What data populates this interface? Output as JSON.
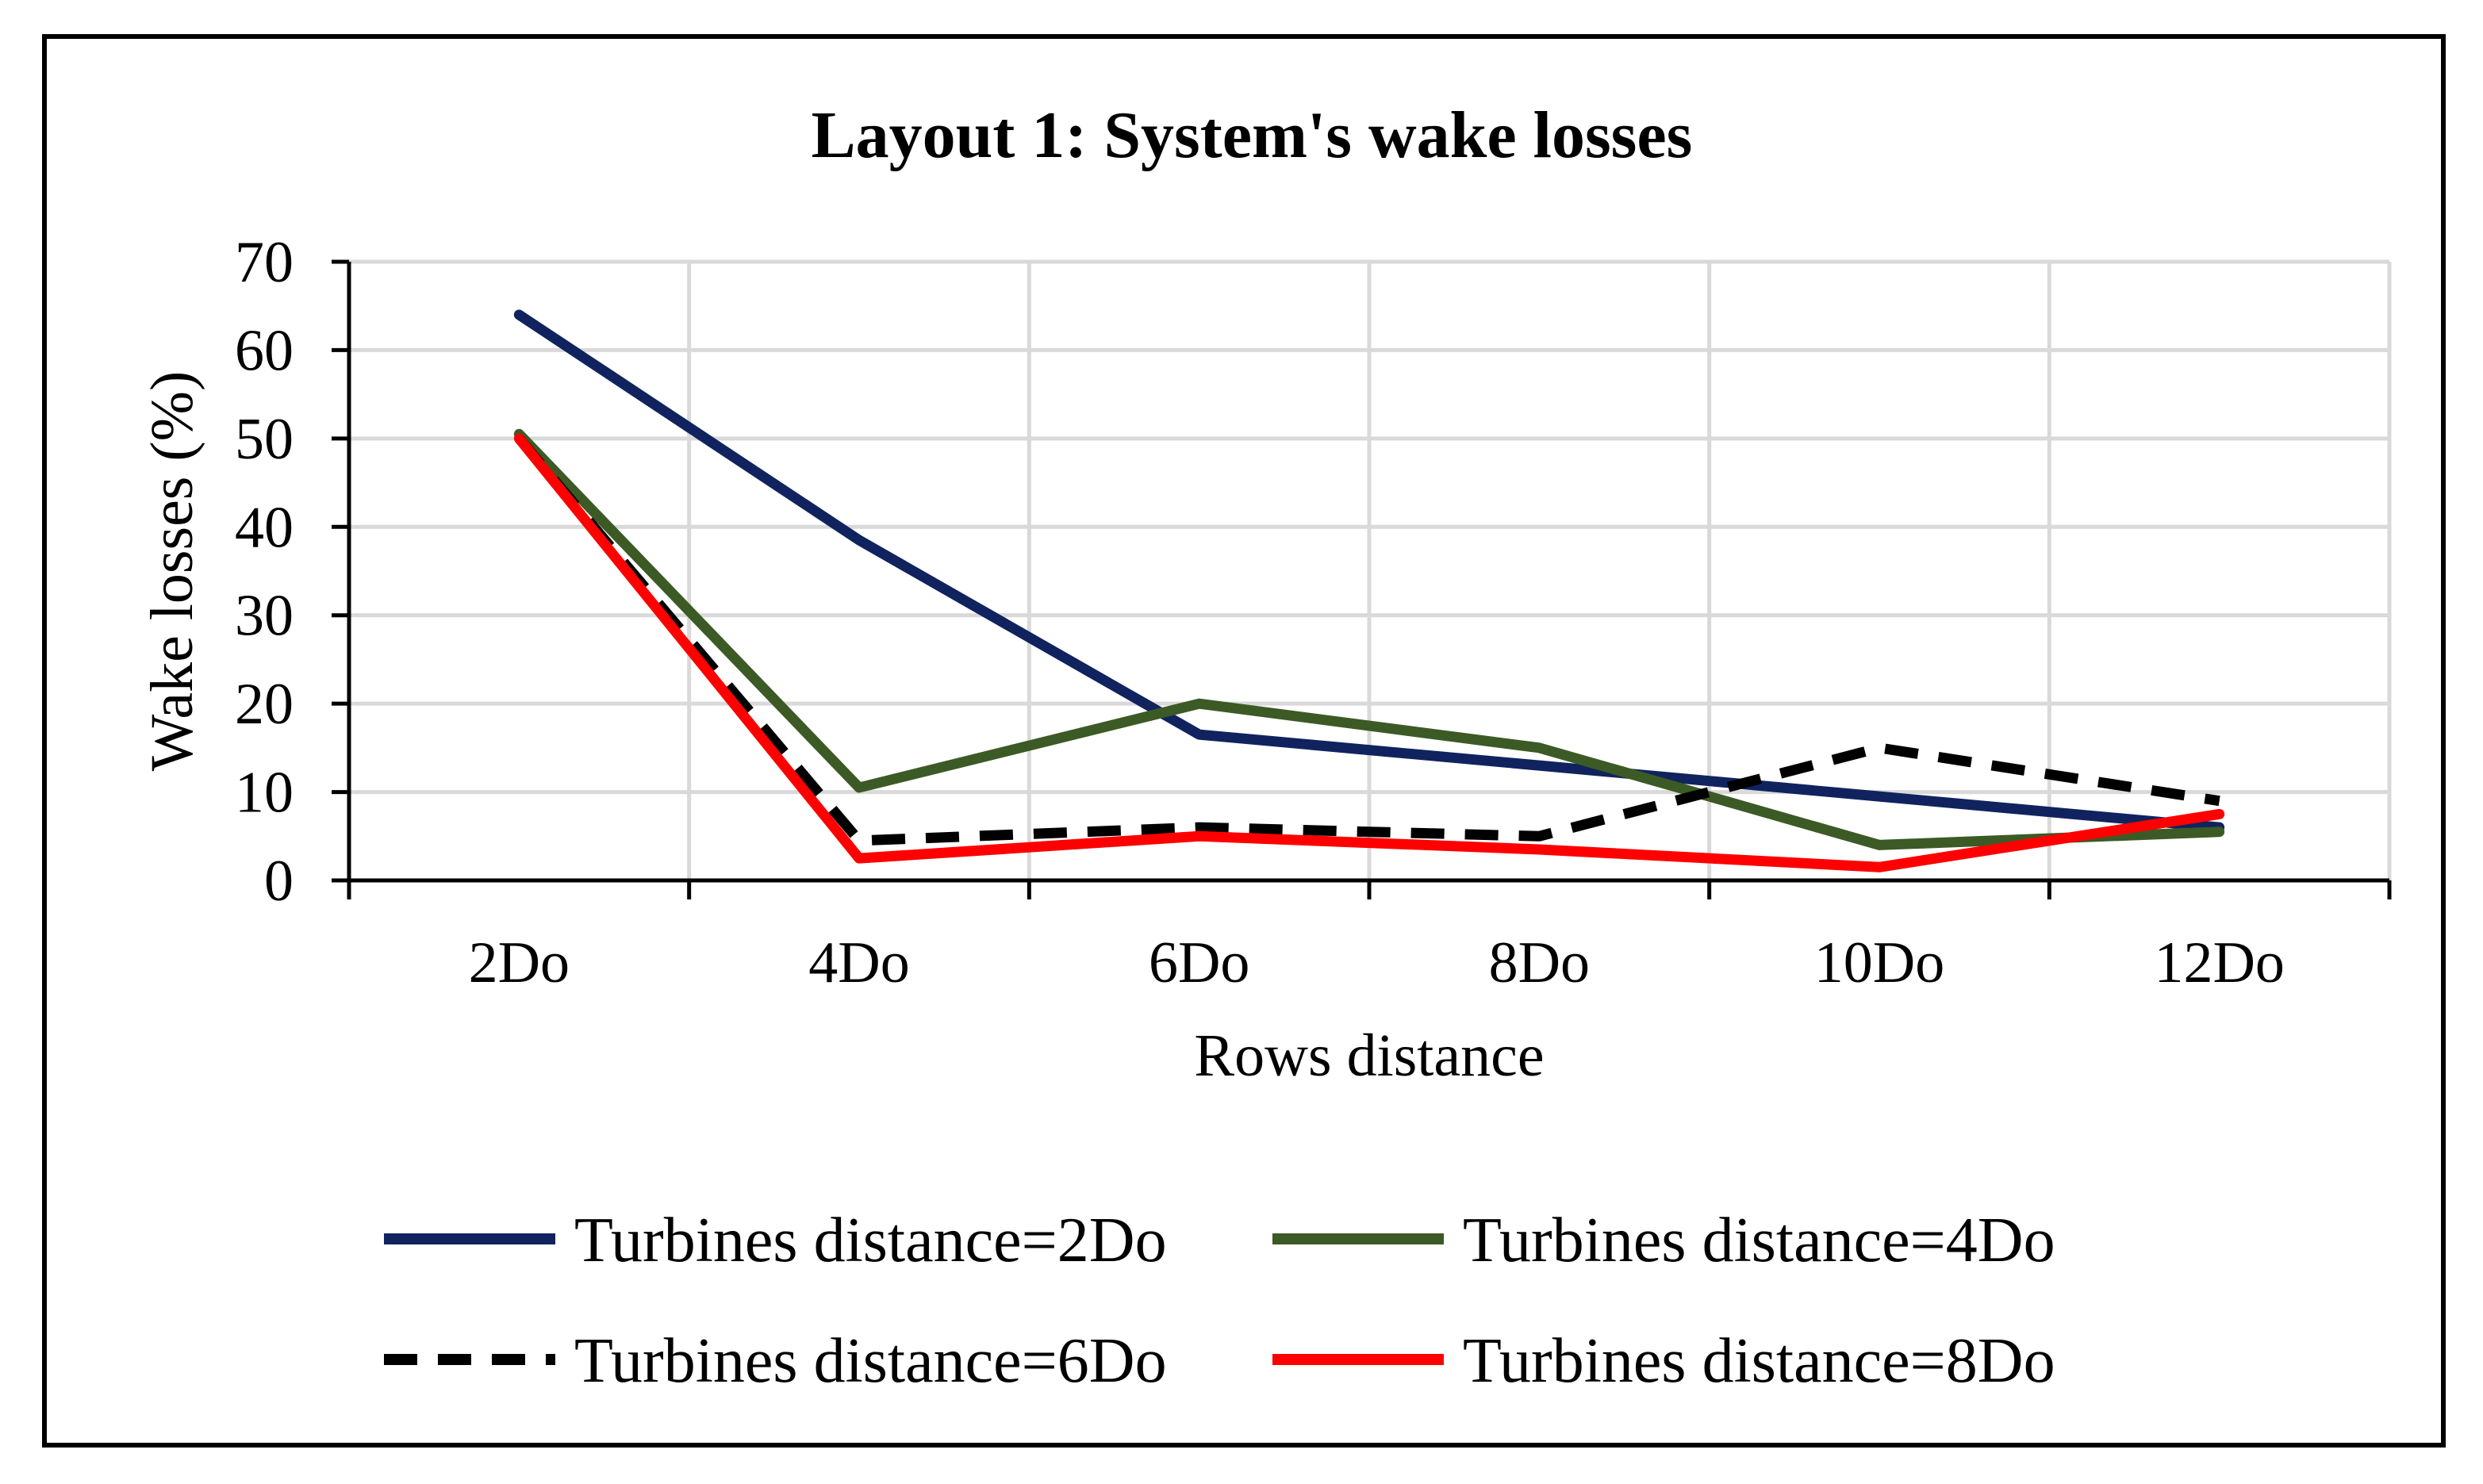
{
  "chart_data": {
    "type": "line",
    "title": "Layout 1: System's wake losses",
    "xlabel": "Rows distance",
    "ylabel": "Wake losses (%)",
    "categories": [
      "2Do",
      "4Do",
      "6Do",
      "8Do",
      "10Do",
      "12Do"
    ],
    "ylim": [
      0,
      70
    ],
    "yticks": [
      0,
      10,
      20,
      30,
      40,
      50,
      60,
      70
    ],
    "grid": true,
    "legend_position": "bottom",
    "series": [
      {
        "name": "Turbines distance=2Do",
        "color": "#10235f",
        "dash": "solid",
        "values": [
          64,
          38.5,
          16.5,
          13,
          9.5,
          6
        ]
      },
      {
        "name": "Turbines distance=4Do",
        "color": "#3c5a25",
        "dash": "solid",
        "values": [
          50.5,
          10.5,
          20,
          15,
          4,
          5.5
        ]
      },
      {
        "name": "Turbines distance=6Do",
        "color": "#000000",
        "dash": "dashed",
        "values": [
          50,
          4.5,
          6,
          5,
          15,
          9
        ]
      },
      {
        "name": "Turbines distance=8Do",
        "color": "#ff0000",
        "dash": "solid",
        "values": [
          50,
          2.5,
          5,
          3.5,
          1.5,
          7.5
        ]
      }
    ]
  }
}
